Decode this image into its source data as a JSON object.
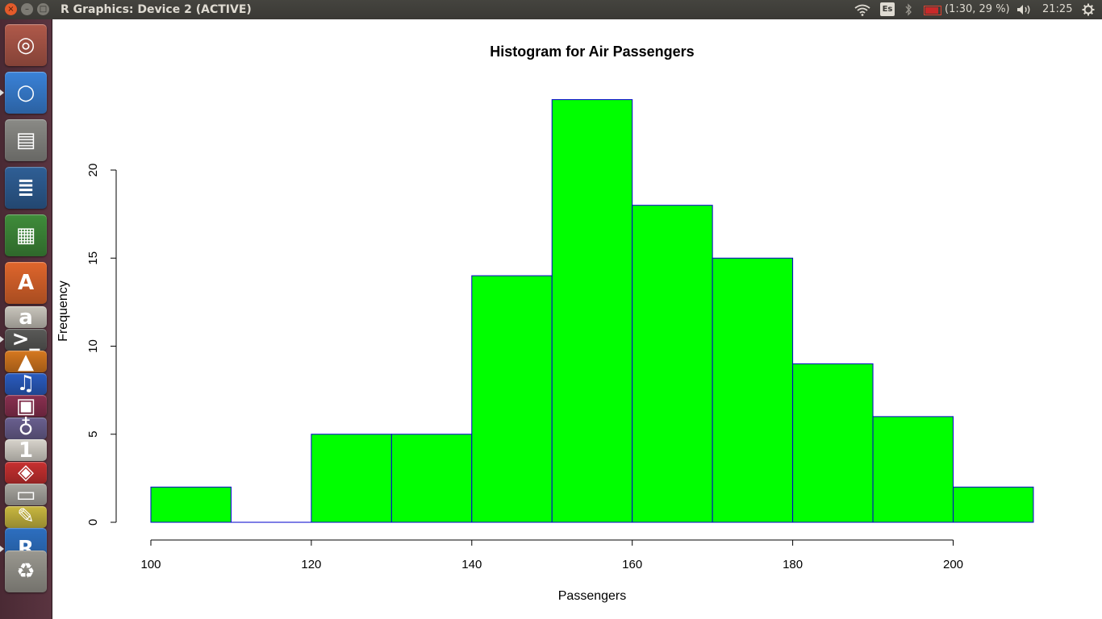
{
  "window": {
    "title": "R Graphics: Device 2 (ACTIVE)",
    "close_glyph": "×",
    "min_glyph": "–",
    "max_glyph": "□"
  },
  "indicators": {
    "keyboard": "Es",
    "battery": "(1:30, 29 %)",
    "clock": "21:25",
    "icons": [
      "wifi-icon",
      "keyboard-layout-icon",
      "bluetooth-icon",
      "battery-icon",
      "volume-icon",
      "session-gear-icon"
    ]
  },
  "launcher": {
    "items": [
      {
        "name": "ubuntu-dash-icon",
        "glyph": "◎",
        "color": "#b0594a",
        "active": false
      },
      {
        "name": "chromium-icon",
        "glyph": "○",
        "color": "#3a82d8",
        "active": true
      },
      {
        "name": "files-icon",
        "glyph": "▤",
        "color": "#8a8a86",
        "active": false
      },
      {
        "name": "writer-icon",
        "glyph": "≣",
        "color": "#2f5f96",
        "active": false
      },
      {
        "name": "calc-icon",
        "glyph": "▦",
        "color": "#3f8c3a",
        "active": false
      },
      {
        "name": "software-center-icon",
        "glyph": "A",
        "color": "#e0662c",
        "active": false
      },
      {
        "name": "amazon-icon",
        "glyph": "a",
        "color": "#c9c5bc",
        "active": false
      },
      {
        "name": "terminal-icon",
        "glyph": ">_",
        "color": "#5a5a58",
        "active": true
      },
      {
        "name": "vlc-icon",
        "glyph": "▲",
        "color": "#d6781f",
        "active": false
      },
      {
        "name": "audacity-icon",
        "glyph": "♫",
        "color": "#2a5cc0",
        "active": false
      },
      {
        "name": "remmina-icon",
        "glyph": "▣",
        "color": "#8a3050",
        "active": false
      },
      {
        "name": "stethoscope-icon",
        "glyph": "♁",
        "color": "#6a6090",
        "active": false
      },
      {
        "name": "calendar-icon",
        "glyph": "1",
        "color": "#d8d4cc",
        "active": false
      },
      {
        "name": "pdf-icon",
        "glyph": "◈",
        "color": "#c83030",
        "active": false
      },
      {
        "name": "scanner-icon",
        "glyph": "▭",
        "color": "#a8a6a0",
        "active": false
      },
      {
        "name": "notes-icon",
        "glyph": "✎",
        "color": "#c9b840",
        "active": false
      },
      {
        "name": "r-icon",
        "glyph": "R",
        "color": "#2d6fc0",
        "active": true
      },
      {
        "name": "trash-icon",
        "glyph": "♻",
        "color": "#9a9890",
        "active": false
      }
    ]
  },
  "chart_data": {
    "type": "bar",
    "title": "Histogram for Air Passengers",
    "xlabel": "Passengers",
    "ylabel": "Frequency",
    "bins": [
      [
        100,
        110
      ],
      [
        110,
        120
      ],
      [
        120,
        130
      ],
      [
        130,
        140
      ],
      [
        140,
        150
      ],
      [
        150,
        160
      ],
      [
        160,
        170
      ],
      [
        170,
        180
      ],
      [
        180,
        190
      ],
      [
        190,
        200
      ],
      [
        200,
        210
      ]
    ],
    "values": [
      2,
      0,
      5,
      5,
      14,
      24,
      18,
      15,
      9,
      6,
      2
    ],
    "xlim": [
      100,
      210
    ],
    "ylim": [
      0,
      24
    ],
    "x_ticks": [
      100,
      120,
      140,
      160,
      180,
      200
    ],
    "x_tick_labels": [
      "100",
      "120",
      "140",
      "160",
      "180",
      "200"
    ],
    "y_ticks": [
      0,
      5,
      10,
      15,
      20
    ],
    "y_tick_labels": [
      "0",
      "5",
      "10",
      "15",
      "20"
    ],
    "bar_fill": "#00ff00",
    "bar_border": "#0000cd",
    "grid": false,
    "legend": "none"
  }
}
